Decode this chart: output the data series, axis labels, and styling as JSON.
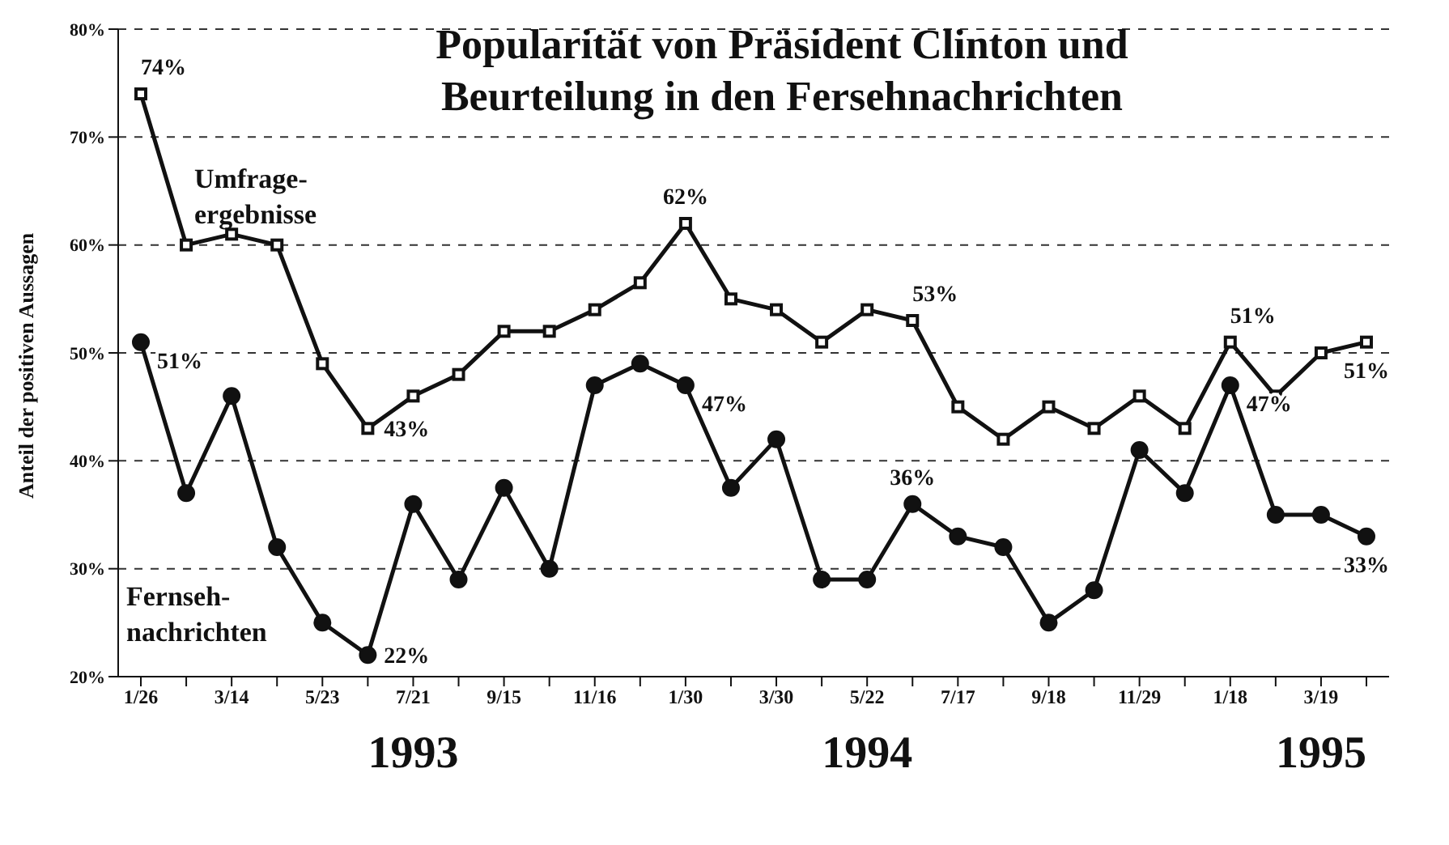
{
  "chart_data": {
    "type": "line",
    "title": "Popularität von Präsident Clinton und Beurteilung in den Fersehnachrichten",
    "ylabel": "Anteil der positiven Aussagen",
    "categories": [
      "1/26",
      null,
      "3/14",
      null,
      "5/23",
      null,
      "7/21",
      null,
      "9/15",
      null,
      "11/16",
      null,
      "1/30",
      null,
      "3/30",
      null,
      "5/22",
      null,
      "7/17",
      null,
      "9/18",
      null,
      "11/29",
      null,
      "1/18",
      null,
      "3/19",
      null
    ],
    "series": [
      {
        "name": "Umfrage-\nergebnisse",
        "color": "#111111",
        "marker": "square",
        "values": [
          74,
          60,
          61,
          60,
          49,
          43,
          46,
          48,
          52,
          52,
          54,
          56.5,
          62,
          55,
          54,
          51,
          54,
          53,
          45,
          42,
          45,
          43,
          46,
          43,
          51,
          46,
          50,
          51
        ],
        "value_labels": [
          "74%",
          null,
          null,
          null,
          null,
          "43%",
          null,
          null,
          null,
          null,
          null,
          null,
          "62%",
          null,
          null,
          null,
          null,
          "53%",
          null,
          null,
          null,
          null,
          null,
          null,
          "51%",
          null,
          null,
          "51%"
        ]
      },
      {
        "name": "Fernseh-\nnachrichten",
        "color": "#111111",
        "marker": "circle",
        "values": [
          51,
          37,
          46,
          32,
          25,
          22,
          36,
          29,
          37.5,
          30,
          47,
          49,
          47,
          37.5,
          42,
          29,
          29,
          36,
          33,
          32,
          25,
          28,
          41,
          37,
          47,
          35,
          35,
          33
        ],
        "value_labels": [
          "51%",
          null,
          null,
          null,
          null,
          "22%",
          null,
          null,
          null,
          null,
          null,
          null,
          "47%",
          null,
          null,
          null,
          null,
          "36%",
          null,
          null,
          null,
          null,
          null,
          null,
          "47%",
          null,
          null,
          "33%"
        ]
      }
    ],
    "ylim": [
      20,
      80
    ],
    "yticks": [
      {
        "value": 20,
        "label": "20%"
      },
      {
        "value": 30,
        "label": "30%"
      },
      {
        "value": 40,
        "label": "40%"
      },
      {
        "value": 50,
        "label": "50%"
      },
      {
        "value": 60,
        "label": "60%"
      },
      {
        "value": 70,
        "label": "70%"
      },
      {
        "value": 80,
        "label": "80%"
      }
    ],
    "grid": "y",
    "legend": false,
    "line_style": "solid",
    "annotations": [
      "1993",
      "1994",
      "1995"
    ]
  }
}
